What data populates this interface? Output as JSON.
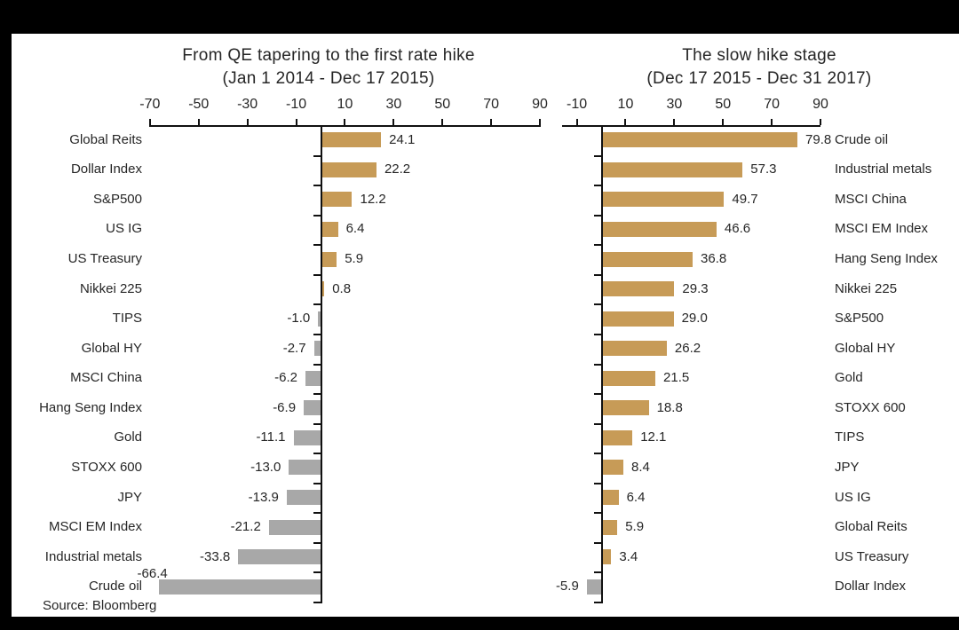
{
  "source": "Source: Bloomberg",
  "colors": {
    "positive_bar": "#C79B57",
    "negative_bar": "#A8A8A8",
    "axis": "#111111",
    "text": "#262626",
    "background": "#FFFFFF",
    "frame": "#000000"
  },
  "chart_data": [
    {
      "type": "bar",
      "orientation": "horizontal",
      "title": "From QE tapering to the first rate hike",
      "subtitle": "(Jan 1 2014 - Dec 17 2015)",
      "xlim": [
        -70,
        90
      ],
      "ticks": [
        -70,
        -50,
        -30,
        -10,
        10,
        30,
        50,
        70,
        90
      ],
      "grid": false,
      "legend": "none",
      "value_label_decimals": 1,
      "categories": [
        "Global Reits",
        "Dollar Index",
        "S&P500",
        "US IG",
        "US Treasury",
        "Nikkei 225",
        "TIPS",
        "Global HY",
        "MSCI China",
        "Hang Seng Index",
        "Gold",
        "STOXX 600",
        "JPY",
        "MSCI EM Index",
        "Industrial metals",
        "Crude oil"
      ],
      "values": [
        24.1,
        22.2,
        12.2,
        6.4,
        5.9,
        0.8,
        -1.0,
        -2.7,
        -6.2,
        -6.9,
        -11.1,
        -13.0,
        -13.9,
        -21.2,
        -33.8,
        -66.4
      ],
      "category_labels_side": "left"
    },
    {
      "type": "bar",
      "orientation": "horizontal",
      "title": "The slow hike stage",
      "subtitle": "(Dec 17 2015 - Dec 31 2017)",
      "xlim": [
        -10,
        90
      ],
      "ticks": [
        -10,
        10,
        30,
        50,
        70,
        90
      ],
      "grid": false,
      "legend": "none",
      "value_label_decimals": 1,
      "categories": [
        "Crude oil",
        "Industrial metals",
        "MSCI China",
        "MSCI EM Index",
        "Hang Seng Index",
        "Nikkei 225",
        "S&P500",
        "Global HY",
        "Gold",
        "STOXX 600",
        "TIPS",
        "JPY",
        "US IG",
        "Global Reits",
        "US Treasury",
        "Dollar Index"
      ],
      "values": [
        79.8,
        57.3,
        49.7,
        46.6,
        36.8,
        29.3,
        29.0,
        26.2,
        21.5,
        18.8,
        12.1,
        8.4,
        6.4,
        5.9,
        3.4,
        -5.9
      ],
      "category_labels_side": "right"
    }
  ]
}
